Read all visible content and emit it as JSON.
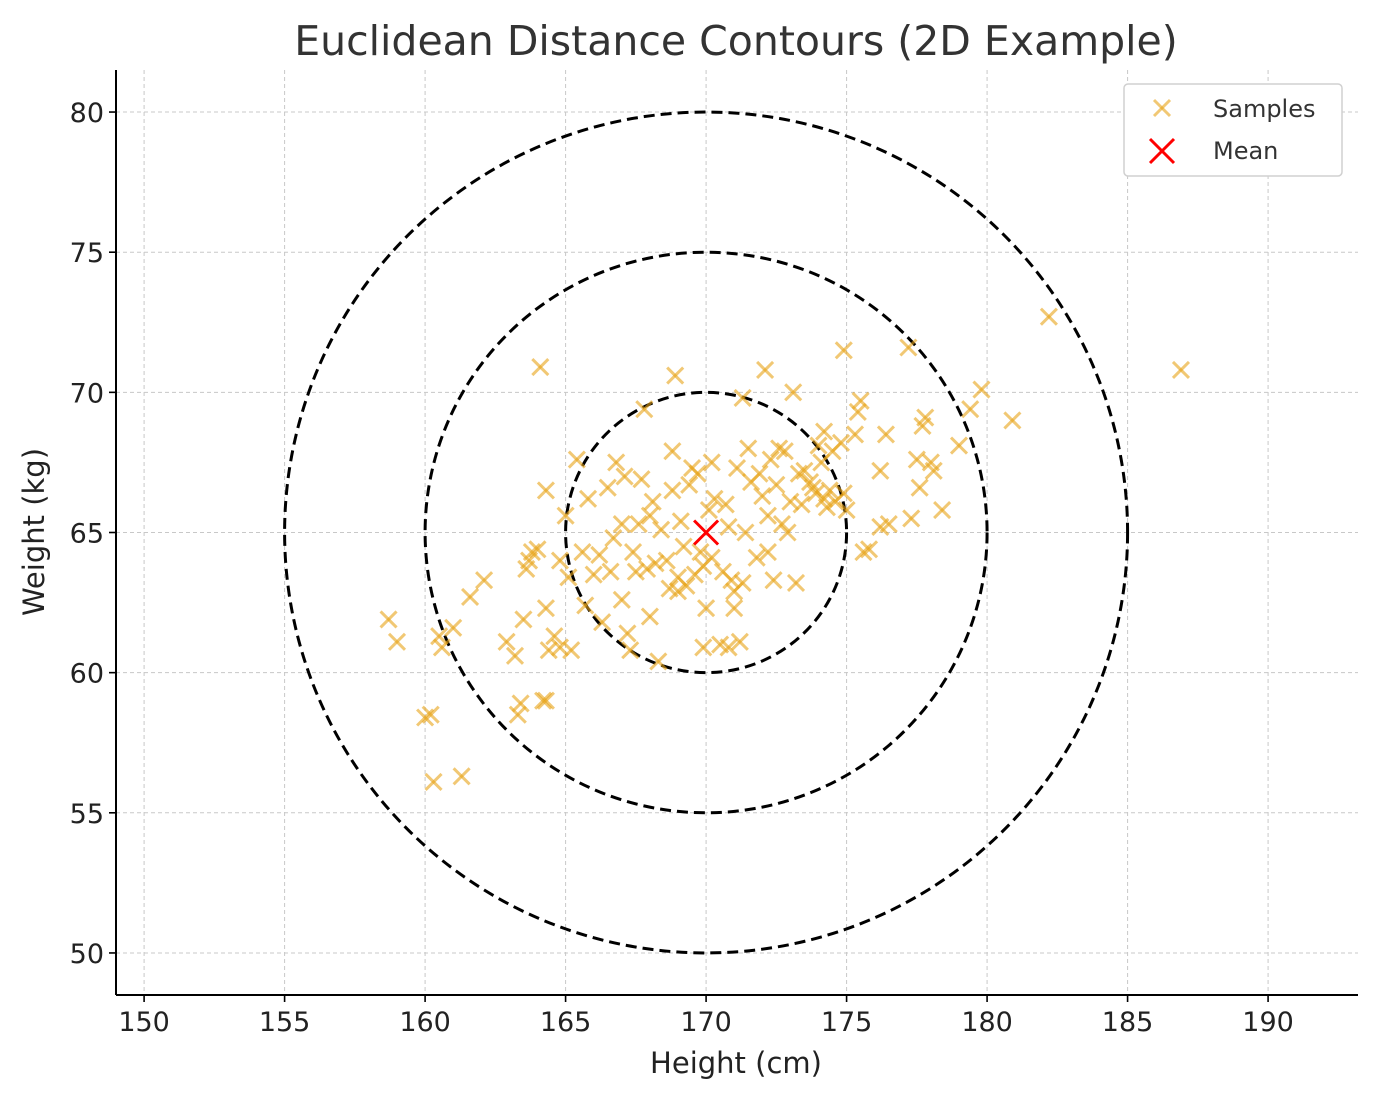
{
  "chart_data": {
    "type": "scatter",
    "title": "Euclidean Distance Contours (2D Example)",
    "xlabel": "Height (cm)",
    "ylabel": "Weight (kg)",
    "xlim": [
      149,
      193.2
    ],
    "ylim": [
      48.5,
      81.5
    ],
    "xticks": [
      150,
      155,
      160,
      165,
      170,
      175,
      180,
      185,
      190
    ],
    "yticks": [
      50,
      55,
      60,
      65,
      70,
      75,
      80
    ],
    "grid": true,
    "legend_position": "top-right",
    "colors": {
      "samples": "#e8a317",
      "mean": "#ff0000",
      "contour": "#000000"
    },
    "contours": {
      "center": [
        170,
        65
      ],
      "radii": [
        5,
        10,
        15
      ]
    },
    "series": [
      {
        "name": "Samples",
        "marker": "x",
        "points": [
          [
            158.7,
            61.9
          ],
          [
            159.0,
            61.1
          ],
          [
            160.0,
            58.4
          ],
          [
            160.2,
            58.5
          ],
          [
            160.3,
            56.1
          ],
          [
            160.5,
            61.3
          ],
          [
            160.6,
            60.9
          ],
          [
            161.0,
            61.6
          ],
          [
            161.3,
            56.3
          ],
          [
            161.6,
            62.7
          ],
          [
            162.1,
            63.3
          ],
          [
            162.9,
            61.1
          ],
          [
            163.2,
            60.6
          ],
          [
            163.3,
            58.5
          ],
          [
            163.4,
            58.9
          ],
          [
            163.5,
            61.9
          ],
          [
            163.6,
            63.7
          ],
          [
            163.7,
            64.0
          ],
          [
            163.8,
            64.3
          ],
          [
            164.0,
            64.4
          ],
          [
            164.1,
            70.9
          ],
          [
            164.2,
            59.0
          ],
          [
            164.3,
            59.0
          ],
          [
            164.3,
            62.3
          ],
          [
            164.3,
            66.5
          ],
          [
            164.4,
            60.8
          ],
          [
            164.6,
            61.3
          ],
          [
            164.8,
            60.9
          ],
          [
            164.8,
            64.0
          ],
          [
            165.0,
            65.6
          ],
          [
            165.1,
            63.4
          ],
          [
            165.2,
            60.8
          ],
          [
            165.4,
            67.6
          ],
          [
            165.6,
            64.3
          ],
          [
            165.7,
            62.4
          ],
          [
            165.8,
            66.2
          ],
          [
            166.0,
            63.5
          ],
          [
            166.2,
            64.2
          ],
          [
            166.3,
            61.8
          ],
          [
            166.5,
            66.6
          ],
          [
            166.6,
            63.6
          ],
          [
            166.7,
            64.8
          ],
          [
            166.8,
            67.5
          ],
          [
            167.0,
            62.6
          ],
          [
            167.0,
            65.3
          ],
          [
            167.1,
            67.0
          ],
          [
            167.2,
            61.4
          ],
          [
            167.3,
            60.8
          ],
          [
            167.4,
            64.3
          ],
          [
            167.5,
            63.6
          ],
          [
            167.6,
            65.3
          ],
          [
            167.7,
            66.9
          ],
          [
            167.8,
            69.4
          ],
          [
            167.9,
            63.7
          ],
          [
            168.0,
            62.0
          ],
          [
            168.0,
            65.6
          ],
          [
            168.1,
            66.1
          ],
          [
            168.2,
            63.9
          ],
          [
            168.3,
            60.4
          ],
          [
            168.4,
            65.1
          ],
          [
            168.6,
            64.0
          ],
          [
            168.7,
            63.0
          ],
          [
            168.8,
            66.5
          ],
          [
            168.8,
            67.9
          ],
          [
            168.9,
            70.6
          ],
          [
            169.0,
            63.4
          ],
          [
            169.0,
            62.9
          ],
          [
            169.1,
            65.4
          ],
          [
            169.2,
            64.5
          ],
          [
            169.3,
            63.1
          ],
          [
            169.4,
            66.7
          ],
          [
            169.5,
            67.3
          ],
          [
            169.6,
            63.5
          ],
          [
            169.7,
            67.1
          ],
          [
            169.8,
            64.3
          ],
          [
            169.9,
            63.8
          ],
          [
            169.9,
            60.9
          ],
          [
            170.0,
            62.3
          ],
          [
            170.1,
            65.8
          ],
          [
            170.2,
            67.5
          ],
          [
            170.2,
            64.1
          ],
          [
            170.3,
            66.2
          ],
          [
            170.5,
            61.0
          ],
          [
            170.6,
            63.6
          ],
          [
            170.7,
            66.0
          ],
          [
            170.8,
            60.9
          ],
          [
            170.8,
            65.2
          ],
          [
            170.9,
            63.3
          ],
          [
            171.0,
            62.9
          ],
          [
            171.0,
            62.3
          ],
          [
            171.1,
            67.3
          ],
          [
            171.2,
            61.1
          ],
          [
            171.3,
            63.2
          ],
          [
            171.3,
            69.8
          ],
          [
            171.4,
            65.0
          ],
          [
            171.5,
            68.0
          ],
          [
            171.6,
            66.8
          ],
          [
            171.8,
            64.1
          ],
          [
            171.9,
            67.1
          ],
          [
            172.0,
            66.3
          ],
          [
            172.1,
            70.8
          ],
          [
            172.2,
            65.6
          ],
          [
            172.2,
            64.3
          ],
          [
            172.3,
            67.6
          ],
          [
            172.4,
            63.3
          ],
          [
            172.5,
            66.7
          ],
          [
            172.6,
            68.0
          ],
          [
            172.7,
            65.3
          ],
          [
            172.8,
            67.9
          ],
          [
            172.9,
            65.0
          ],
          [
            173.0,
            66.1
          ],
          [
            173.1,
            70.0
          ],
          [
            173.2,
            63.2
          ],
          [
            173.3,
            67.1
          ],
          [
            173.4,
            66.0
          ],
          [
            173.5,
            67.2
          ],
          [
            173.7,
            66.8
          ],
          [
            173.8,
            66.6
          ],
          [
            173.9,
            66.4
          ],
          [
            174.0,
            68.1
          ],
          [
            174.1,
            67.5
          ],
          [
            174.2,
            68.6
          ],
          [
            174.2,
            66.2
          ],
          [
            174.3,
            65.9
          ],
          [
            174.4,
            66.5
          ],
          [
            174.5,
            67.9
          ],
          [
            174.6,
            66.1
          ],
          [
            174.8,
            68.2
          ],
          [
            174.9,
            71.5
          ],
          [
            174.9,
            66.4
          ],
          [
            175.0,
            65.8
          ],
          [
            175.3,
            68.5
          ],
          [
            175.4,
            69.3
          ],
          [
            175.5,
            69.7
          ],
          [
            175.6,
            64.3
          ],
          [
            175.8,
            64.4
          ],
          [
            176.2,
            65.2
          ],
          [
            176.2,
            67.2
          ],
          [
            176.4,
            68.5
          ],
          [
            176.5,
            65.3
          ],
          [
            177.2,
            71.6
          ],
          [
            177.3,
            65.5
          ],
          [
            177.5,
            67.6
          ],
          [
            177.6,
            66.6
          ],
          [
            177.7,
            68.8
          ],
          [
            177.8,
            69.1
          ],
          [
            178.0,
            67.5
          ],
          [
            178.1,
            67.2
          ],
          [
            178.4,
            65.8
          ],
          [
            179.0,
            68.1
          ],
          [
            179.4,
            69.4
          ],
          [
            179.8,
            70.1
          ],
          [
            180.9,
            69.0
          ],
          [
            182.2,
            72.7
          ],
          [
            186.9,
            70.8
          ]
        ]
      },
      {
        "name": "Mean",
        "marker": "x",
        "points": [
          [
            170,
            65
          ]
        ]
      }
    ]
  }
}
